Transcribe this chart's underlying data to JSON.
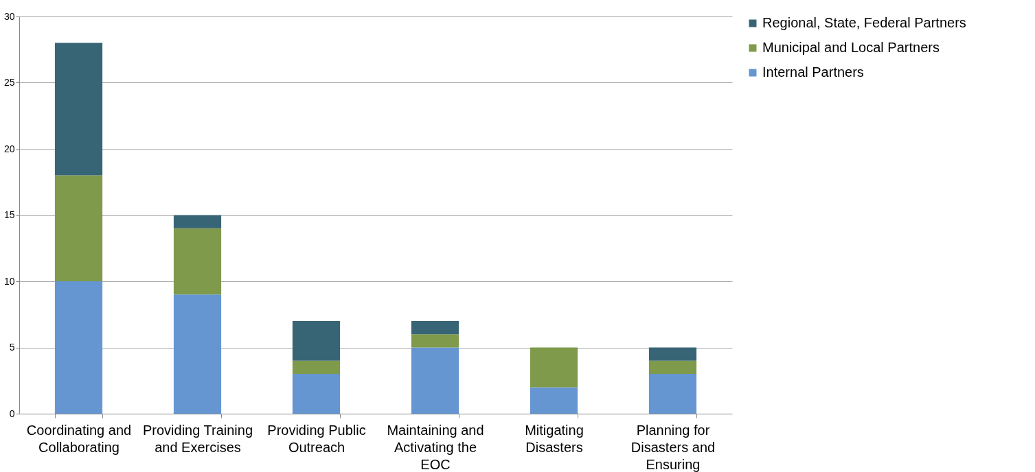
{
  "chart_data": {
    "type": "bar",
    "stacked": true,
    "categories": [
      "Coordinating and Collaborating",
      "Providing Training and Exercises",
      "Providing Public Outreach",
      "Maintaining and Activating the EOC",
      "Mitigating Disasters",
      "Planning for Disasters and Ensuring"
    ],
    "series": [
      {
        "name": "Internal Partners",
        "color": "#6596d1",
        "values": [
          10,
          9,
          3,
          5,
          2,
          3
        ]
      },
      {
        "name": "Municipal and Local Partners",
        "color": "#7e9a4a",
        "values": [
          8,
          5,
          1,
          1,
          3,
          1
        ]
      },
      {
        "name": "Regional, State, Federal Partners",
        "color": "#386575",
        "values": [
          10,
          1,
          3,
          1,
          0,
          1
        ]
      }
    ],
    "ylim": [
      0,
      30
    ],
    "yticks": [
      0,
      5,
      10,
      15,
      20,
      25,
      30
    ],
    "grid": "y",
    "legend": "right"
  }
}
